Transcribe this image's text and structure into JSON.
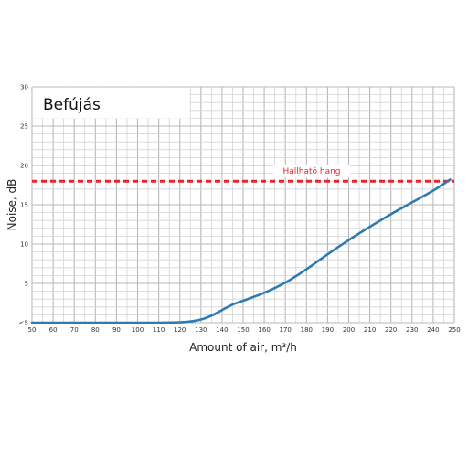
{
  "chart_data": {
    "type": "line",
    "title": "Befújás",
    "xlabel": "Amount of air, m³/h",
    "ylabel": "Noise, dB",
    "xlim": [
      50,
      250
    ],
    "ylim": [
      0,
      30
    ],
    "x_ticks": [
      50,
      60,
      70,
      80,
      90,
      100,
      110,
      120,
      130,
      140,
      150,
      160,
      170,
      180,
      190,
      200,
      210,
      220,
      230,
      240,
      250
    ],
    "x_tick_labels": [
      "50",
      "60",
      "70",
      "80",
      "90",
      "100",
      "110",
      "120",
      "130",
      "140",
      "150",
      "160",
      "170",
      "180",
      "190",
      "200",
      "210",
      "220",
      "230",
      "240",
      "250"
    ],
    "y_ticks": [
      0,
      5,
      10,
      15,
      20,
      25,
      30
    ],
    "y_tick_labels": [
      "<5",
      "5",
      "10",
      "15",
      "20",
      "25",
      "30"
    ],
    "grid": true,
    "series": [
      {
        "x": [
          50,
          60,
          70,
          80,
          90,
          100,
          110,
          120,
          125,
          130,
          135,
          140,
          145,
          150,
          160,
          170,
          180,
          190,
          200,
          210,
          220,
          230,
          240,
          248
        ],
        "y": [
          0,
          0,
          0,
          0,
          0,
          0,
          0,
          0.05,
          0.15,
          0.4,
          0.9,
          1.6,
          2.3,
          2.8,
          3.8,
          5.1,
          6.8,
          8.7,
          10.5,
          12.2,
          13.8,
          15.3,
          16.8,
          18.2
        ],
        "color": "#2f7bb0"
      }
    ],
    "reference_line": {
      "y": 18,
      "label": "Hallható hang",
      "color": "#e8262e",
      "style": "dashed"
    }
  }
}
